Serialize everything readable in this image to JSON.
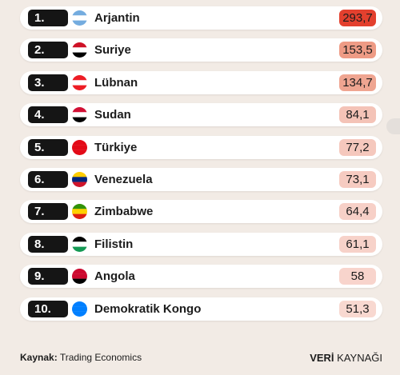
{
  "rows": [
    {
      "rank": "1.",
      "name": "Arjantin",
      "value": "293,7",
      "value_color": "#e3402e"
    },
    {
      "rank": "2.",
      "name": "Suriye",
      "value": "153,5",
      "value_color": "#ee9b85"
    },
    {
      "rank": "3.",
      "name": "Lübnan",
      "value": "134,7",
      "value_color": "#efa591"
    },
    {
      "rank": "4.",
      "name": "Sudan",
      "value": "84,1",
      "value_color": "#f4c3b7"
    },
    {
      "rank": "5.",
      "name": "Türkiye",
      "value": "77,2",
      "value_color": "#f5c8bd"
    },
    {
      "rank": "6.",
      "name": "Venezuela",
      "value": "73,1",
      "value_color": "#f6cbc1"
    },
    {
      "rank": "7.",
      "name": "Zimbabwe",
      "value": "64,4",
      "value_color": "#f7d0c7"
    },
    {
      "rank": "8.",
      "name": "Filistin",
      "value": "61,1",
      "value_color": "#f7d2c9"
    },
    {
      "rank": "9.",
      "name": "Angola",
      "value": "58",
      "value_color": "#f8d4cc"
    },
    {
      "rank": "10.",
      "name": "Demokratik Kongo",
      "value": "51,3",
      "value_color": "#f8d8d0"
    }
  ],
  "footer": {
    "source_label": "Kaynak:",
    "source": "Trading Economics",
    "brand_bold": "VERİ",
    "brand": "KAYNAĞI"
  }
}
